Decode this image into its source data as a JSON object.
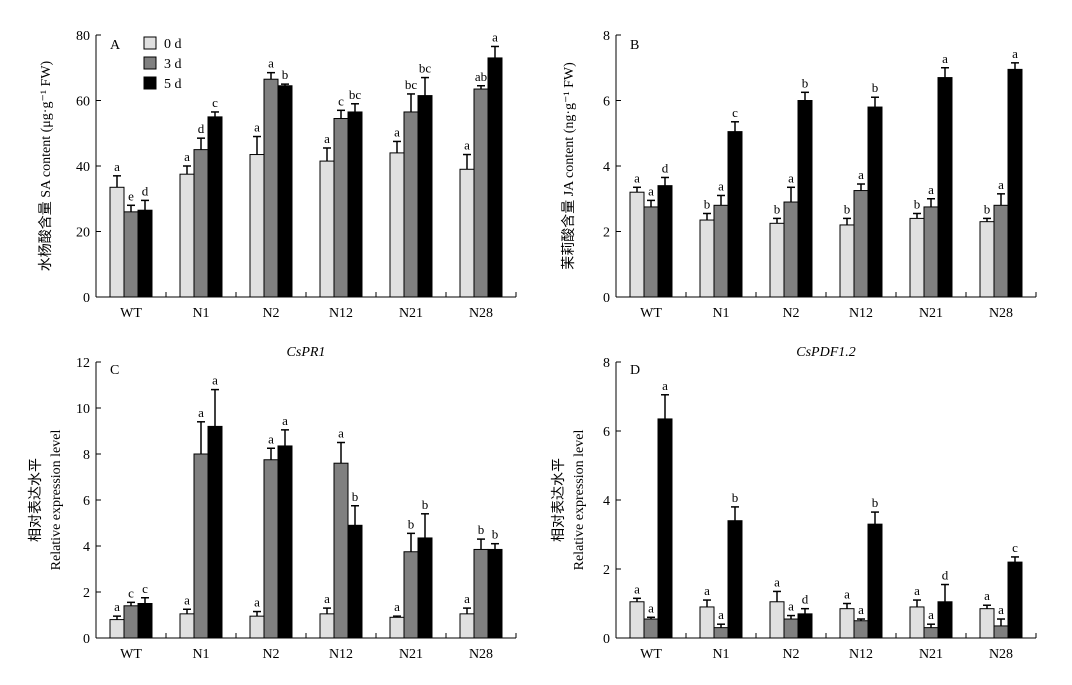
{
  "legend": [
    {
      "label": "0 d",
      "color": "#e0e0e0"
    },
    {
      "label": "3 d",
      "color": "#808080"
    },
    {
      "label": "5 d",
      "color": "#000000"
    }
  ],
  "chart_data": [
    {
      "id": "A",
      "type": "bar",
      "letter": "A",
      "title": "",
      "ylabel": "水杨酸含量 SA content (μg·g⁻¹ FW)",
      "ylabel_lines": [
        "水杨酸含量 SA content (μg·g⁻¹ FW)"
      ],
      "ylim": [
        0,
        80
      ],
      "yticks": [
        "0",
        "20",
        "40",
        "60",
        "80"
      ],
      "categories": [
        "WT",
        "N1",
        "N2",
        "N12",
        "N21",
        "N28"
      ],
      "series": [
        {
          "name": "0 d",
          "values": [
            33.5,
            37.5,
            43.5,
            41.5,
            44,
            39
          ],
          "errors": [
            3.5,
            2.5,
            5.5,
            4,
            3.5,
            4.5
          ],
          "sig": [
            "a",
            "a",
            "a",
            "a",
            "a",
            "a"
          ]
        },
        {
          "name": "3 d",
          "values": [
            26,
            45,
            66.5,
            54.5,
            56.5,
            63.5
          ],
          "errors": [
            2,
            3.5,
            2,
            2.5,
            5.5,
            1
          ],
          "sig": [
            "e",
            "d",
            "a",
            "c",
            "bc",
            "ab"
          ]
        },
        {
          "name": "5 d",
          "values": [
            26.5,
            55,
            64.5,
            56.5,
            61.5,
            73
          ],
          "errors": [
            3,
            1.5,
            0.5,
            2.5,
            5.5,
            3.5
          ],
          "sig": [
            "d",
            "c",
            "b",
            "bc",
            "bc",
            "a"
          ]
        }
      ]
    },
    {
      "id": "B",
      "type": "bar",
      "letter": "B",
      "title": "",
      "ylabel": "茉莉酸含量 JA content (ng·g⁻¹ FW)",
      "ylabel_lines": [
        "茉莉酸含量 JA content (ng·g⁻¹ FW)"
      ],
      "ylim": [
        0,
        8
      ],
      "yticks": [
        "0",
        "2",
        "4",
        "6",
        "8"
      ],
      "categories": [
        "WT",
        "N1",
        "N2",
        "N12",
        "N21",
        "N28"
      ],
      "series": [
        {
          "name": "0 d",
          "values": [
            3.2,
            2.35,
            2.25,
            2.2,
            2.4,
            2.3
          ],
          "errors": [
            0.15,
            0.2,
            0.15,
            0.2,
            0.15,
            0.1
          ],
          "sig": [
            "a",
            "b",
            "b",
            "b",
            "b",
            "b"
          ]
        },
        {
          "name": "3 d",
          "values": [
            2.75,
            2.8,
            2.9,
            3.25,
            2.75,
            2.8
          ],
          "errors": [
            0.2,
            0.3,
            0.45,
            0.2,
            0.25,
            0.35
          ],
          "sig": [
            "a",
            "a",
            "a",
            "a",
            "a",
            "a"
          ]
        },
        {
          "name": "5 d",
          "values": [
            3.4,
            5.05,
            6,
            5.8,
            6.7,
            6.95
          ],
          "errors": [
            0.25,
            0.3,
            0.25,
            0.3,
            0.3,
            0.2
          ],
          "sig": [
            "d",
            "c",
            "b",
            "b",
            "a",
            "a"
          ]
        }
      ]
    },
    {
      "id": "C",
      "type": "bar",
      "letter": "C",
      "title": "CsPR1",
      "ylabel": "相对表达水平 Relative expression level",
      "ylabel_lines": [
        "相对表达水平",
        "Relative expression level"
      ],
      "ylim": [
        0,
        12
      ],
      "yticks": [
        "0",
        "2",
        "4",
        "6",
        "8",
        "10",
        "12"
      ],
      "categories": [
        "WT",
        "N1",
        "N2",
        "N12",
        "N21",
        "N28"
      ],
      "series": [
        {
          "name": "0 d",
          "values": [
            0.8,
            1.05,
            0.95,
            1.05,
            0.9,
            1.05
          ],
          "errors": [
            0.15,
            0.2,
            0.2,
            0.25,
            0.05,
            0.25
          ],
          "sig": [
            "a",
            "a",
            "a",
            "a",
            "a",
            "a"
          ]
        },
        {
          "name": "3 d",
          "values": [
            1.4,
            8,
            7.75,
            7.6,
            3.75,
            3.85
          ],
          "errors": [
            0.15,
            1.4,
            0.5,
            0.9,
            0.8,
            0.45
          ],
          "sig": [
            "c",
            "a",
            "a",
            "a",
            "b",
            "b"
          ]
        },
        {
          "name": "5 d",
          "values": [
            1.5,
            9.2,
            8.35,
            4.9,
            4.35,
            3.85
          ],
          "errors": [
            0.25,
            1.6,
            0.7,
            0.85,
            1.05,
            0.25
          ],
          "sig": [
            "c",
            "a",
            "a",
            "b",
            "b",
            "b"
          ]
        }
      ]
    },
    {
      "id": "D",
      "type": "bar",
      "letter": "D",
      "title": "CsPDF1.2",
      "ylabel": "相对表达水平 Relative expression level",
      "ylabel_lines": [
        "相对表达水平",
        "Relative expression level"
      ],
      "ylim": [
        0,
        8
      ],
      "yticks": [
        "0",
        "2",
        "4",
        "6",
        "8"
      ],
      "categories": [
        "WT",
        "N1",
        "N2",
        "N12",
        "N21",
        "N28"
      ],
      "series": [
        {
          "name": "0 d",
          "values": [
            1.05,
            0.9,
            1.05,
            0.85,
            0.9,
            0.85
          ],
          "errors": [
            0.1,
            0.2,
            0.3,
            0.15,
            0.2,
            0.1
          ],
          "sig": [
            "a",
            "a",
            "a",
            "a",
            "a",
            "a"
          ]
        },
        {
          "name": "3 d",
          "values": [
            0.55,
            0.3,
            0.55,
            0.5,
            0.3,
            0.35
          ],
          "errors": [
            0.05,
            0.1,
            0.1,
            0.05,
            0.1,
            0.2
          ],
          "sig": [
            "a",
            "a",
            "a",
            "a",
            "a",
            "a"
          ]
        },
        {
          "name": "5 d",
          "values": [
            6.35,
            3.4,
            0.7,
            3.3,
            1.05,
            2.2
          ],
          "errors": [
            0.7,
            0.4,
            0.15,
            0.35,
            0.5,
            0.15
          ],
          "sig": [
            "a",
            "b",
            "d",
            "b",
            "d",
            "c"
          ]
        }
      ]
    }
  ]
}
